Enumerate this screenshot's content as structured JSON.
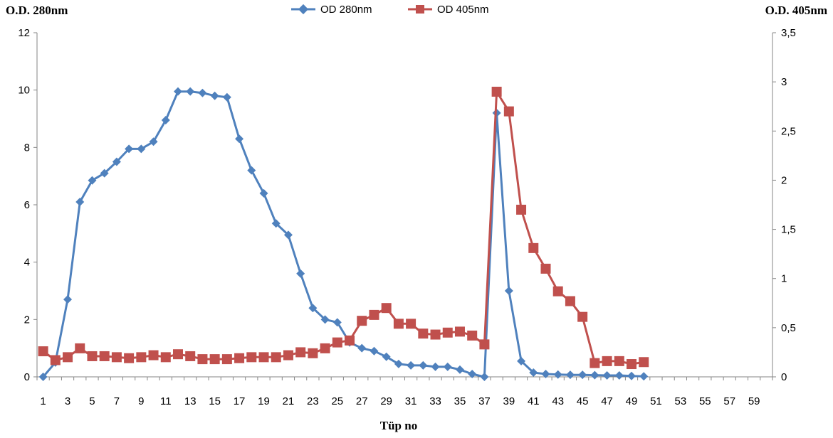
{
  "chart_data": {
    "type": "line",
    "xlabel": "Tüp no",
    "ylabel_left": "O.D. 280nm",
    "ylabel_right": "O.D. 405nm",
    "x_range": [
      1,
      60
    ],
    "x_ticks": [
      1,
      3,
      5,
      7,
      9,
      11,
      13,
      15,
      17,
      19,
      21,
      23,
      25,
      27,
      29,
      31,
      33,
      35,
      37,
      39,
      41,
      43,
      45,
      47,
      49,
      51,
      53,
      55,
      57,
      59
    ],
    "ylim_left": [
      0,
      12
    ],
    "yticks_left": [
      {
        "value": 0,
        "label": "0"
      },
      {
        "value": 2,
        "label": "2"
      },
      {
        "value": 4,
        "label": "4"
      },
      {
        "value": 6,
        "label": "6"
      },
      {
        "value": 8,
        "label": "8"
      },
      {
        "value": 10,
        "label": "10"
      },
      {
        "value": 12,
        "label": "12"
      }
    ],
    "ylim_right": [
      0,
      3.5
    ],
    "yticks_right": [
      {
        "value": 0,
        "label": "0"
      },
      {
        "value": 0.5,
        "label": "0,5"
      },
      {
        "value": 1,
        "label": "1"
      },
      {
        "value": 1.5,
        "label": "1,5"
      },
      {
        "value": 2,
        "label": "2"
      },
      {
        "value": 2.5,
        "label": "2,5"
      },
      {
        "value": 3,
        "label": "3"
      },
      {
        "value": 3.5,
        "label": "3,5"
      }
    ],
    "grid": false,
    "legend_position": "top-center",
    "series": [
      {
        "name": "OD 280nm",
        "axis": "left",
        "color": "#4f81bd",
        "marker": "diamond",
        "x": [
          1,
          2,
          3,
          4,
          5,
          6,
          7,
          8,
          9,
          10,
          11,
          12,
          13,
          14,
          15,
          16,
          17,
          18,
          19,
          20,
          21,
          22,
          23,
          24,
          25,
          26,
          27,
          28,
          29,
          30,
          31,
          32,
          33,
          34,
          35,
          36,
          37,
          38,
          39,
          40,
          41,
          42,
          43,
          44,
          45,
          46,
          47,
          48,
          49,
          50
        ],
        "values": [
          0,
          0.5,
          2.7,
          6.1,
          6.85,
          7.1,
          7.5,
          7.95,
          7.95,
          8.2,
          8.95,
          9.95,
          9.95,
          9.9,
          9.8,
          9.75,
          8.3,
          7.2,
          6.4,
          5.35,
          4.95,
          3.6,
          2.4,
          2.0,
          1.9,
          1.2,
          1.0,
          0.9,
          0.7,
          0.45,
          0.4,
          0.4,
          0.35,
          0.35,
          0.25,
          0.1,
          0.0,
          9.2,
          3.0,
          0.55,
          0.15,
          0.1,
          0.08,
          0.07,
          0.07,
          0.06,
          0.05,
          0.05,
          0.03,
          0.02
        ]
      },
      {
        "name": "OD 405nm",
        "axis": "right",
        "color": "#c0504d",
        "marker": "square",
        "x": [
          1,
          2,
          3,
          4,
          5,
          6,
          7,
          8,
          9,
          10,
          11,
          12,
          13,
          14,
          15,
          16,
          17,
          18,
          19,
          20,
          21,
          22,
          23,
          24,
          25,
          26,
          27,
          28,
          29,
          30,
          31,
          32,
          33,
          34,
          35,
          36,
          37,
          38,
          39,
          40,
          41,
          42,
          43,
          44,
          45,
          46,
          47,
          48,
          49,
          50
        ],
        "values": [
          0.26,
          0.17,
          0.2,
          0.29,
          0.21,
          0.21,
          0.2,
          0.19,
          0.2,
          0.22,
          0.2,
          0.23,
          0.21,
          0.18,
          0.18,
          0.18,
          0.19,
          0.2,
          0.2,
          0.2,
          0.22,
          0.25,
          0.24,
          0.29,
          0.35,
          0.37,
          0.57,
          0.63,
          0.7,
          0.54,
          0.54,
          0.44,
          0.43,
          0.45,
          0.46,
          0.42,
          0.33,
          2.9,
          2.7,
          1.7,
          1.31,
          1.1,
          0.87,
          0.77,
          0.61,
          0.14,
          0.16,
          0.16,
          0.13,
          0.15
        ]
      }
    ]
  }
}
